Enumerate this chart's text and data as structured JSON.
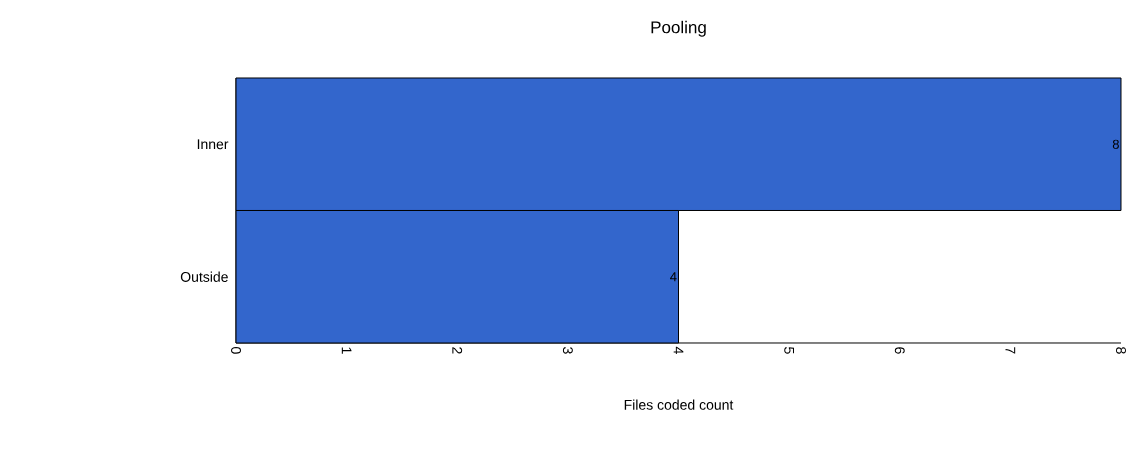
{
  "chart_data": {
    "type": "bar",
    "orientation": "horizontal",
    "title": "Pooling",
    "xlabel": "Files coded count",
    "categories": [
      "Inner",
      "Outside"
    ],
    "values": [
      8,
      4
    ],
    "color": "#3366cc",
    "xlim": [
      0,
      8
    ],
    "xticks": [
      0,
      1,
      2,
      3,
      4,
      5,
      6,
      7,
      8
    ],
    "data_labels": true
  }
}
